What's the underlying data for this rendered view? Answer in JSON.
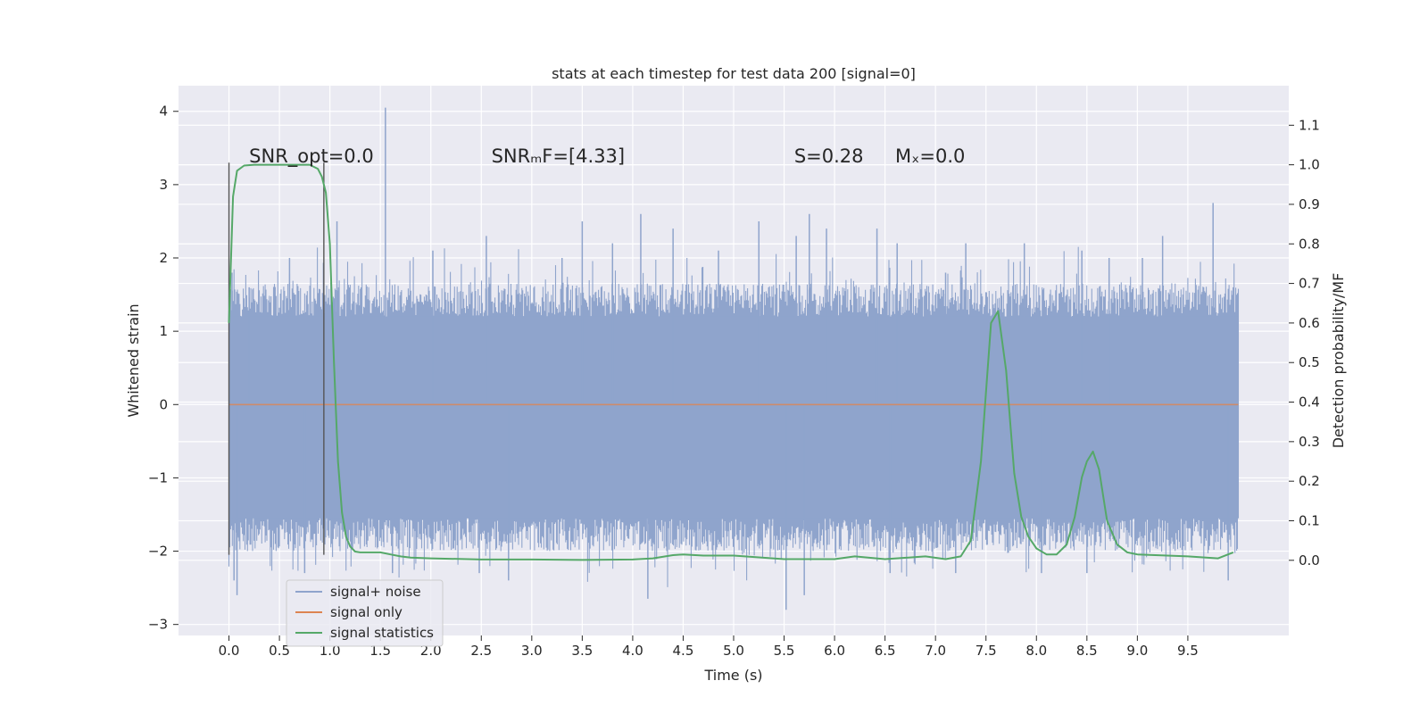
{
  "chart_data": {
    "type": "line",
    "title": "stats at each timestep for test data 200 [signal=0]",
    "xlabel": "Time (s)",
    "ylabel": "Whitened strain",
    "y2label": "Detection probability/MF",
    "xlim": [
      -0.5,
      10.5
    ],
    "ylim": [
      -3.15,
      4.35
    ],
    "y2lim": [
      -0.19,
      1.2
    ],
    "grid": true,
    "legend_position": "lower-left",
    "xticks": [
      0.0,
      0.5,
      1.0,
      1.5,
      2.0,
      2.5,
      3.0,
      3.5,
      4.0,
      4.5,
      5.0,
      5.5,
      6.0,
      6.5,
      7.0,
      7.5,
      8.0,
      8.5,
      9.0,
      9.5
    ],
    "xtick_labels": [
      "0.0",
      "0.5",
      "1.0",
      "1.5",
      "2.0",
      "2.5",
      "3.0",
      "3.5",
      "4.0",
      "4.5",
      "5.0",
      "5.5",
      "6.0",
      "6.5",
      "7.0",
      "7.5",
      "8.0",
      "8.5",
      "9.0",
      "9.5"
    ],
    "yticks": [
      -3,
      -2,
      -1,
      0,
      1,
      2,
      3,
      4
    ],
    "ytick_labels": [
      "−3",
      "−2",
      "−1",
      "0",
      "1",
      "2",
      "3",
      "4"
    ],
    "y2ticks": [
      0.0,
      0.1,
      0.2,
      0.3,
      0.4,
      0.5,
      0.6,
      0.7,
      0.8,
      0.9,
      1.0,
      1.1
    ],
    "y2tick_labels": [
      "0.0",
      "0.1",
      "0.2",
      "0.3",
      "0.4",
      "0.5",
      "0.6",
      "0.7",
      "0.8",
      "0.9",
      "1.0",
      "1.1"
    ],
    "annotations": [
      {
        "label": "SNR_opt=0.0",
        "x": 0.2,
        "y": 3.3
      },
      {
        "label": "SNRₘF=[4.33]",
        "x": 2.6,
        "y": 3.3
      },
      {
        "label": "S=0.28",
        "x": 5.6,
        "y": 3.3
      },
      {
        "label": "Mₓ=0.0",
        "x": 6.6,
        "y": 3.3
      }
    ],
    "vlines": [
      {
        "x": 0.0,
        "ymin": -2.05,
        "ymax": 3.3
      },
      {
        "x": 0.94,
        "ymin": -2.05,
        "ymax": 3.3
      }
    ],
    "series": [
      {
        "name": "signal+ noise",
        "axis": "left",
        "color": "#8fa4cc",
        "description_values": {
          "x_range": [
            0.0,
            10.0
          ],
          "band": [
            -1.55,
            1.2
          ]
        },
        "spikes": [
          [
            0.03,
            1.8
          ],
          [
            0.05,
            -2.4
          ],
          [
            0.08,
            -2.6
          ],
          [
            0.2,
            1.6
          ],
          [
            0.6,
            2.0
          ],
          [
            0.75,
            -2.3
          ],
          [
            1.07,
            2.5
          ],
          [
            1.55,
            4.05
          ],
          [
            1.62,
            -2.3
          ],
          [
            2.02,
            2.1
          ],
          [
            2.48,
            -2.3
          ],
          [
            2.55,
            2.3
          ],
          [
            2.77,
            -2.4
          ],
          [
            3.3,
            2.0
          ],
          [
            3.5,
            2.5
          ],
          [
            3.8,
            2.2
          ],
          [
            4.08,
            2.6
          ],
          [
            4.15,
            -2.65
          ],
          [
            4.4,
            2.4
          ],
          [
            4.85,
            2.1
          ],
          [
            5.25,
            2.5
          ],
          [
            5.52,
            -2.8
          ],
          [
            5.62,
            2.3
          ],
          [
            5.7,
            -2.6
          ],
          [
            5.75,
            2.6
          ],
          [
            5.92,
            2.4
          ],
          [
            6.42,
            2.4
          ],
          [
            6.55,
            -2.3
          ],
          [
            6.62,
            2.2
          ],
          [
            7.1,
            1.8
          ],
          [
            7.2,
            -2.3
          ],
          [
            7.3,
            2.2
          ],
          [
            7.88,
            2.2
          ],
          [
            8.05,
            -2.3
          ],
          [
            8.45,
            2.1
          ],
          [
            8.5,
            -2.3
          ],
          [
            8.72,
            2.0
          ],
          [
            9.05,
            2.0
          ],
          [
            9.25,
            2.3
          ],
          [
            9.75,
            2.75
          ],
          [
            9.9,
            -2.4
          ],
          [
            9.95,
            1.6
          ]
        ]
      },
      {
        "name": "signal only",
        "axis": "left",
        "color": "#dd8452",
        "x": [
          0.0,
          10.0
        ],
        "y": [
          0.0,
          0.0
        ]
      },
      {
        "name": "signal statistics",
        "axis": "right",
        "color": "#55a868",
        "x": [
          0.0,
          0.04,
          0.08,
          0.15,
          0.25,
          0.4,
          0.6,
          0.8,
          0.88,
          0.92,
          0.96,
          1.0,
          1.04,
          1.08,
          1.12,
          1.16,
          1.2,
          1.25,
          1.3,
          1.4,
          1.5,
          1.6,
          1.7,
          1.8,
          2.0,
          2.5,
          3.0,
          3.5,
          4.0,
          4.2,
          4.4,
          4.5,
          4.7,
          5.0,
          5.5,
          6.0,
          6.2,
          6.5,
          6.9,
          7.1,
          7.25,
          7.35,
          7.45,
          7.55,
          7.62,
          7.7,
          7.78,
          7.85,
          7.92,
          8.0,
          8.1,
          8.2,
          8.3,
          8.38,
          8.45,
          8.5,
          8.56,
          8.62,
          8.7,
          8.8,
          8.9,
          9.0,
          9.5,
          9.8,
          9.95
        ],
        "y": [
          0.6,
          0.92,
          0.985,
          0.998,
          1.0,
          1.0,
          1.0,
          1.0,
          0.99,
          0.97,
          0.93,
          0.8,
          0.5,
          0.25,
          0.12,
          0.06,
          0.035,
          0.022,
          0.02,
          0.02,
          0.02,
          0.015,
          0.01,
          0.007,
          0.005,
          0.002,
          0.002,
          0.001,
          0.002,
          0.005,
          0.013,
          0.015,
          0.012,
          0.012,
          0.003,
          0.003,
          0.01,
          0.003,
          0.01,
          0.003,
          0.01,
          0.05,
          0.25,
          0.6,
          0.63,
          0.48,
          0.22,
          0.11,
          0.06,
          0.03,
          0.015,
          0.015,
          0.04,
          0.11,
          0.21,
          0.25,
          0.275,
          0.23,
          0.1,
          0.04,
          0.02,
          0.015,
          0.01,
          0.005,
          0.02
        ]
      }
    ]
  }
}
